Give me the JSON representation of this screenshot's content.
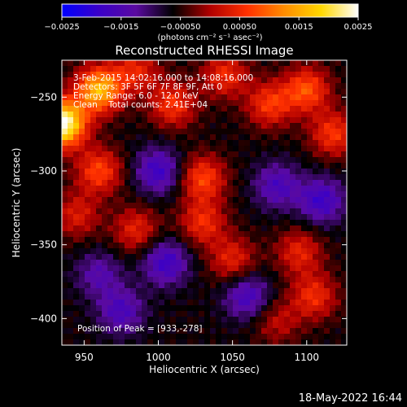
{
  "chart_data": {
    "type": "heatmap",
    "title": "Reconstructed RHESSI Image",
    "xlabel": "Heliocentric X (arcsec)",
    "ylabel": "Heliocentric Y (arcsec)",
    "xlim": [
      935,
      1127
    ],
    "ylim": [
      -418,
      -225
    ],
    "x_ticks": [
      950,
      1000,
      1050,
      1100
    ],
    "y_ticks": [
      -250,
      -300,
      -350,
      -400
    ],
    "colorbar": {
      "label": "(photons cm⁻² s⁻¹ asec⁻²)",
      "range": [
        -0.0025,
        0.0025
      ],
      "ticks": [
        "−0.0025",
        "−0.0015",
        "−0.00050",
        "0.00050",
        "0.0015",
        "0.0025"
      ],
      "colormap": [
        "#0000ff",
        "#3a00c8",
        "#5a0aa0",
        "#000000",
        "#b00000",
        "#ff3000",
        "#ff8c00",
        "#ffd700",
        "#ffffff"
      ]
    },
    "annotations": [
      "3-Feb-2015 14:02:16.000 to 14:08:16.000",
      "Detectors: 3F 5F 6F 7F 8F 9F, Att 0",
      "Energy Range: 6.0 - 12.0 keV",
      "Clean    Total counts: 2.41E+04",
      "Position of Peak = [933,-278]"
    ],
    "peak": {
      "x": 933,
      "y": -278
    },
    "features": [
      {
        "x": 935,
        "y": -268,
        "value": 0.0032
      },
      {
        "x": 960,
        "y": -245,
        "value": 0.0022
      },
      {
        "x": 985,
        "y": -232,
        "value": 0.001
      },
      {
        "x": 960,
        "y": -300,
        "value": 0.0013
      },
      {
        "x": 945,
        "y": -330,
        "value": 0.0009
      },
      {
        "x": 1010,
        "y": -255,
        "value": 0.0012
      },
      {
        "x": 1045,
        "y": -235,
        "value": 0.0011
      },
      {
        "x": 1075,
        "y": -255,
        "value": 0.0012
      },
      {
        "x": 1100,
        "y": -245,
        "value": 0.0014
      },
      {
        "x": 1118,
        "y": -275,
        "value": 0.0012
      },
      {
        "x": 1030,
        "y": -305,
        "value": 0.0013
      },
      {
        "x": 1030,
        "y": -335,
        "value": 0.0011
      },
      {
        "x": 985,
        "y": -340,
        "value": 0.001
      },
      {
        "x": 1050,
        "y": -360,
        "value": 0.001
      },
      {
        "x": 1095,
        "y": -355,
        "value": 0.001
      },
      {
        "x": 1105,
        "y": -385,
        "value": 0.0011
      },
      {
        "x": 1080,
        "y": -402,
        "value": 0.0007
      },
      {
        "x": 1000,
        "y": -300,
        "value": -0.0012
      },
      {
        "x": 1005,
        "y": -362,
        "value": -0.0012
      },
      {
        "x": 975,
        "y": -395,
        "value": -0.001
      },
      {
        "x": 1060,
        "y": -385,
        "value": -0.0011
      },
      {
        "x": 1110,
        "y": -320,
        "value": -0.0012
      },
      {
        "x": 1080,
        "y": -310,
        "value": -0.001
      },
      {
        "x": 960,
        "y": -370,
        "value": -0.0008
      }
    ]
  },
  "footer": {
    "timestamp": "18-May-2022 16:44"
  }
}
